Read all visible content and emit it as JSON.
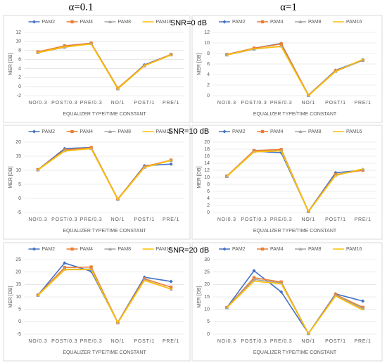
{
  "headers": {
    "columns": [
      "α=0.1",
      "α=1"
    ],
    "rows": [
      "SNR=0 dB",
      "SNR=10 dB",
      "SNR=20 dB"
    ]
  },
  "chart_data": [
    {
      "type": "line",
      "x_label": "EQUALIZER TYPE/TIME CONSTANT",
      "y_label": "MER [DB]",
      "categories": [
        "NO/0.3",
        "POST/0.3",
        "PRE/0.3",
        "NO/1",
        "POST/1",
        "PRE/1"
      ],
      "ylim": [
        -2,
        12
      ],
      "yticks": [
        -2,
        0,
        2,
        4,
        6,
        8,
        10,
        12
      ],
      "grid": true,
      "legend": "top",
      "series": [
        {
          "name": "PAM2",
          "color": "#4472c4",
          "marker": "diamond",
          "values": [
            7.6,
            9.0,
            9.6,
            -0.4,
            4.8,
            7.1
          ]
        },
        {
          "name": "PAM4",
          "color": "#ed7d31",
          "marker": "square",
          "values": [
            7.7,
            9.0,
            9.6,
            -0.3,
            4.7,
            7.1
          ]
        },
        {
          "name": "PAM8",
          "color": "#a5a5a5",
          "marker": "triangle",
          "values": [
            7.5,
            8.7,
            9.5,
            -0.5,
            4.6,
            7.0
          ]
        },
        {
          "name": "PAM16",
          "color": "#ffc000",
          "marker": "none",
          "values": [
            7.5,
            8.8,
            9.4,
            -0.5,
            4.6,
            7.0
          ]
        }
      ]
    },
    {
      "type": "line",
      "x_label": "EQUALIZER TYPE/TIME CONSTANT",
      "y_label": "MER [DB]",
      "categories": [
        "NO/0.3",
        "POST/0.3",
        "PRE/0.3",
        "NO/1",
        "POST/1",
        "PRE/1"
      ],
      "ylim": [
        0,
        12
      ],
      "yticks": [
        0,
        2,
        4,
        6,
        8,
        10,
        12
      ],
      "grid": true,
      "legend": "top",
      "series": [
        {
          "name": "PAM2",
          "color": "#4472c4",
          "marker": "diamond",
          "values": [
            7.8,
            9.0,
            9.9,
            0.1,
            4.8,
            6.8
          ]
        },
        {
          "name": "PAM4",
          "color": "#ed7d31",
          "marker": "square",
          "values": [
            7.8,
            9.0,
            9.8,
            0.1,
            4.7,
            6.7
          ]
        },
        {
          "name": "PAM8",
          "color": "#a5a5a5",
          "marker": "triangle",
          "values": [
            7.7,
            8.8,
            9.4,
            0.0,
            4.6,
            6.7
          ]
        },
        {
          "name": "PAM16",
          "color": "#ffc000",
          "marker": "none",
          "values": [
            7.7,
            8.9,
            9.3,
            0.0,
            4.6,
            6.9
          ]
        }
      ]
    },
    {
      "type": "line",
      "x_label": "EQUALIZER TYPE/TIME CONSTANT",
      "y_label": "MER [DB]",
      "categories": [
        "NO/0.3",
        "POST/0.3",
        "PRE/0.3",
        "NO/1",
        "POST/1",
        "PRE/1"
      ],
      "ylim": [
        -5,
        20
      ],
      "yticks": [
        -5,
        0,
        5,
        10,
        15,
        20
      ],
      "grid": true,
      "legend": "top",
      "series": [
        {
          "name": "PAM2",
          "color": "#4472c4",
          "marker": "diamond",
          "values": [
            10.2,
            17.7,
            18.1,
            -0.3,
            11.6,
            12.2
          ]
        },
        {
          "name": "PAM4",
          "color": "#ed7d31",
          "marker": "square",
          "values": [
            10.2,
            17.2,
            18.0,
            -0.2,
            11.3,
            13.6
          ]
        },
        {
          "name": "PAM8",
          "color": "#a5a5a5",
          "marker": "triangle",
          "values": [
            10.1,
            16.9,
            17.7,
            -0.4,
            11.0,
            13.5
          ]
        },
        {
          "name": "PAM16",
          "color": "#ffc000",
          "marker": "none",
          "values": [
            10.1,
            16.8,
            17.7,
            -0.4,
            11.0,
            13.5
          ]
        }
      ]
    },
    {
      "type": "line",
      "x_label": "EQUALIZER TYPE/TIME CONSTANT",
      "y_label": "MER [DB]",
      "categories": [
        "NO/0.3",
        "POST/0.3",
        "PRE/0.3",
        "NO/1",
        "POST/1",
        "PRE/1"
      ],
      "ylim": [
        0,
        20
      ],
      "yticks": [
        0,
        2,
        4,
        6,
        8,
        10,
        12,
        14,
        16,
        18,
        20
      ],
      "grid": true,
      "legend": "top",
      "series": [
        {
          "name": "PAM2",
          "color": "#4472c4",
          "marker": "diamond",
          "values": [
            10.3,
            17.4,
            17.0,
            0.3,
            11.3,
            12.0
          ]
        },
        {
          "name": "PAM4",
          "color": "#ed7d31",
          "marker": "square",
          "values": [
            10.3,
            17.6,
            17.9,
            0.3,
            10.8,
            12.0
          ]
        },
        {
          "name": "PAM8",
          "color": "#a5a5a5",
          "marker": "triangle",
          "values": [
            10.2,
            17.3,
            17.6,
            0.2,
            10.6,
            12.3
          ]
        },
        {
          "name": "PAM16",
          "color": "#ffc000",
          "marker": "none",
          "values": [
            10.2,
            17.2,
            17.5,
            0.2,
            10.5,
            12.4
          ]
        }
      ]
    },
    {
      "type": "line",
      "x_label": "EQUALIZER TYPE/TIME CONSTANT",
      "y_label": "MER [DB]",
      "categories": [
        "NO/0.3",
        "POST/0.3",
        "PRE/0.3",
        "NO/1",
        "POST/1",
        "PRE/1"
      ],
      "ylim": [
        -5,
        25
      ],
      "yticks": [
        -5,
        0,
        5,
        10,
        15,
        20,
        25
      ],
      "grid": true,
      "legend": "top",
      "series": [
        {
          "name": "PAM2",
          "color": "#4472c4",
          "marker": "diamond",
          "values": [
            10.7,
            23.6,
            20.3,
            -0.3,
            17.9,
            16.2
          ]
        },
        {
          "name": "PAM4",
          "color": "#ed7d31",
          "marker": "square",
          "values": [
            10.7,
            21.8,
            22.0,
            -0.3,
            17.3,
            13.9
          ]
        },
        {
          "name": "PAM8",
          "color": "#a5a5a5",
          "marker": "triangle",
          "values": [
            10.6,
            21.1,
            21.2,
            -0.5,
            16.8,
            13.1
          ]
        },
        {
          "name": "PAM16",
          "color": "#ffc000",
          "marker": "none",
          "values": [
            10.6,
            20.9,
            21.0,
            -0.5,
            16.6,
            13.1
          ]
        }
      ]
    },
    {
      "type": "line",
      "x_label": "EQUALIZER TYPE/TIME CONSTANT",
      "y_label": "MER [DB]",
      "categories": [
        "NO/0.3",
        "POST/0.3",
        "PRE/0.3",
        "NO/1",
        "POST/1",
        "PRE/1"
      ],
      "ylim": [
        0,
        30
      ],
      "yticks": [
        0,
        5,
        10,
        15,
        20,
        25,
        30
      ],
      "grid": true,
      "legend": "top",
      "series": [
        {
          "name": "PAM2",
          "color": "#4472c4",
          "marker": "diamond",
          "values": [
            10.7,
            25.5,
            17.0,
            0.3,
            16.2,
            13.3
          ]
        },
        {
          "name": "PAM4",
          "color": "#ed7d31",
          "marker": "square",
          "values": [
            10.7,
            22.7,
            21.0,
            0.3,
            15.9,
            10.8
          ]
        },
        {
          "name": "PAM8",
          "color": "#a5a5a5",
          "marker": "triangle",
          "values": [
            10.6,
            22.0,
            20.6,
            0.2,
            15.6,
            10.3
          ]
        },
        {
          "name": "PAM16",
          "color": "#ffc000",
          "marker": "none",
          "values": [
            10.6,
            21.3,
            20.3,
            0.2,
            15.3,
            9.7
          ]
        }
      ]
    }
  ]
}
